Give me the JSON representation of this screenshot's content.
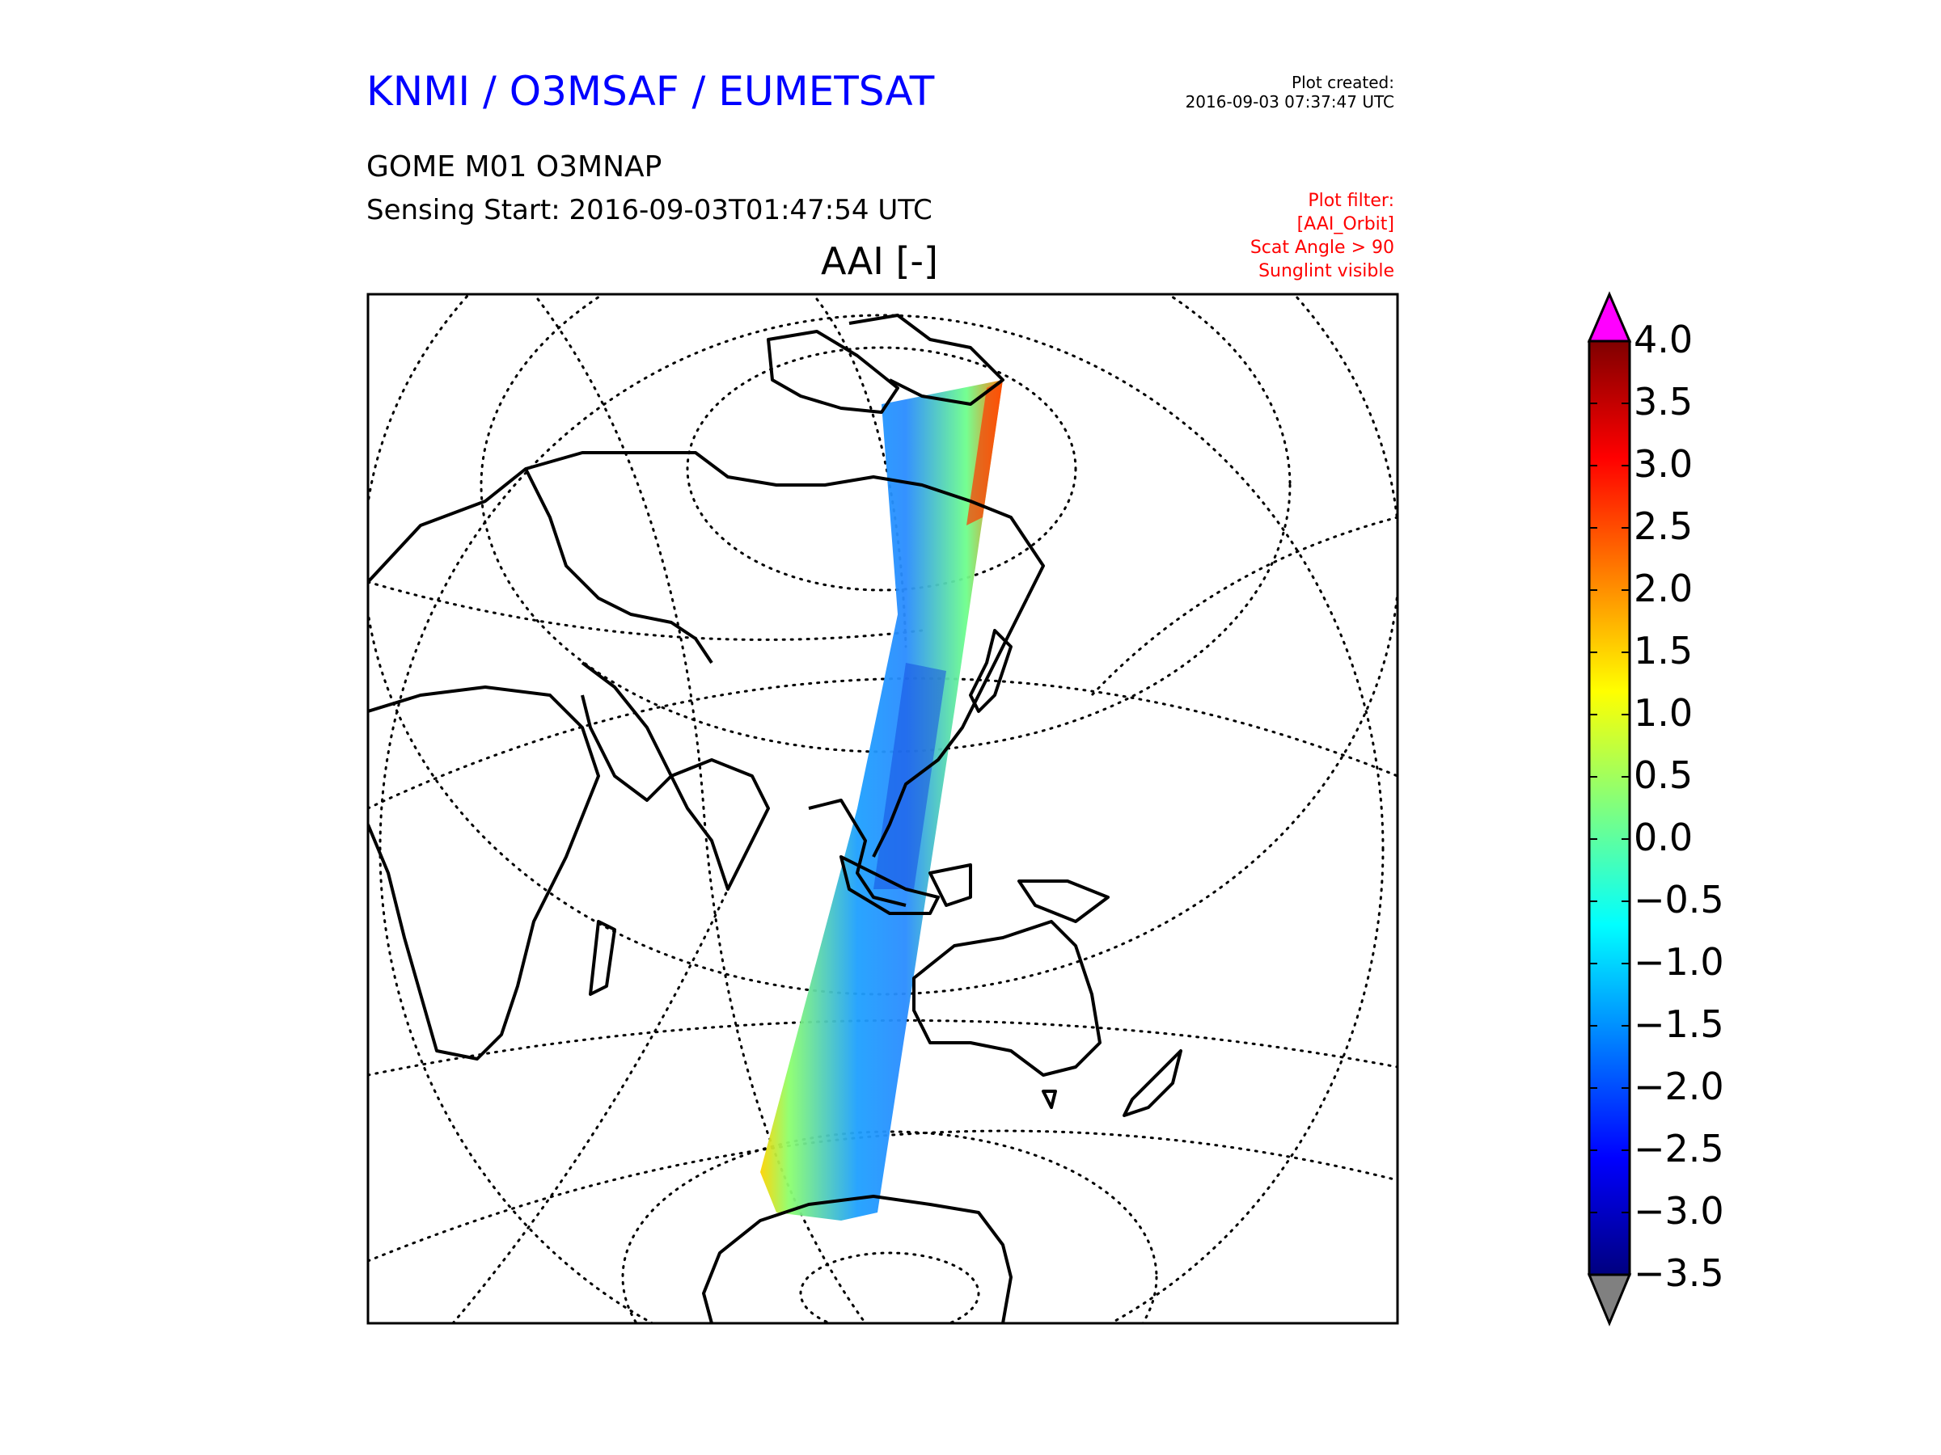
{
  "header": {
    "org_title": "KNMI / O3MSAF / EUMETSAT",
    "created_label": "Plot created:",
    "created_time": "2016-09-03 07:37:47 UTC",
    "product": "GOME M01 O3MNAP",
    "sensing_start": "Sensing Start: 2016-09-03T01:47:54 UTC",
    "filter_lines": [
      "Plot filter:",
      "[AAI_Orbit]",
      "Scat Angle > 90",
      "Sunglint visible"
    ]
  },
  "map": {
    "title": "AAI [-]",
    "projection": "orthographic (Asia / Indian Ocean centered)",
    "graticule": "dotted",
    "swath_colormap": "jet"
  },
  "colorbar": {
    "ticks": [
      "4.0",
      "3.5",
      "3.0",
      "2.5",
      "2.0",
      "1.5",
      "1.0",
      "0.5",
      "0.0",
      "−0.5",
      "−1.0",
      "−1.5",
      "−2.0",
      "−2.5",
      "−3.0",
      "−3.5"
    ],
    "min": -3.5,
    "max": 4.0,
    "over_color": "#ff00ff",
    "under_color": "#808080",
    "colors": [
      "#00007f",
      "#0000ff",
      "#007fff",
      "#00ffff",
      "#7fff7f",
      "#ffff00",
      "#ff7f00",
      "#ff0000",
      "#7f0000"
    ]
  },
  "colors": {
    "title_blue": "#0000ff",
    "filter_red": "#ff0000"
  }
}
